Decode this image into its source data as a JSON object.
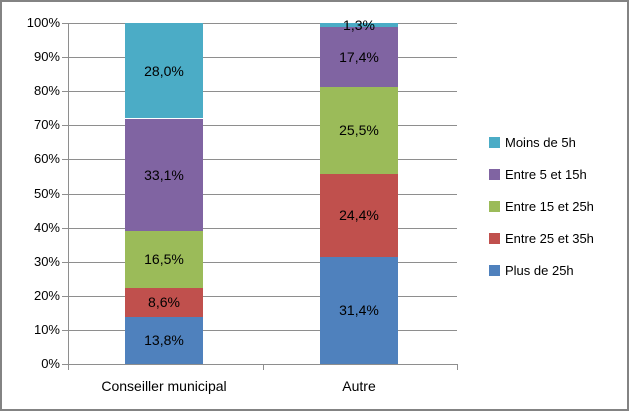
{
  "chart_data": {
    "type": "bar",
    "subtype": "stacked-100-percent-column",
    "title": "",
    "xlabel": "",
    "ylabel": "",
    "ylim": [
      0,
      100
    ],
    "grid": true,
    "legend_position": "right",
    "categories": [
      "Conseiller municipal",
      "Autre"
    ],
    "y_ticks": [
      "0%",
      "10%",
      "20%",
      "30%",
      "40%",
      "50%",
      "60%",
      "70%",
      "80%",
      "90%",
      "100%"
    ],
    "y_tick_values": [
      0,
      10,
      20,
      30,
      40,
      50,
      60,
      70,
      80,
      90,
      100
    ],
    "series": [
      {
        "name": "Plus de 25h",
        "color": "#4f81bd",
        "values": [
          13.8,
          31.4
        ],
        "labels": [
          "13,8%",
          "31,4%"
        ]
      },
      {
        "name": "Entre 25 et 35h",
        "color": "#c0504d",
        "values": [
          8.6,
          24.4
        ],
        "labels": [
          "8,6%",
          "24,4%"
        ]
      },
      {
        "name": "Entre 15 et 25h",
        "color": "#9bbb59",
        "values": [
          16.5,
          25.5
        ],
        "labels": [
          "16,5%",
          "25,5%"
        ]
      },
      {
        "name": "Entre 5 et 15h",
        "color": "#8064a2",
        "values": [
          33.1,
          17.4
        ],
        "labels": [
          "33,1%",
          "17,4%"
        ]
      },
      {
        "name": "Moins de 5h",
        "color": "#4bacc6",
        "values": [
          28.0,
          1.3
        ],
        "labels": [
          "28,0%",
          "1,3%"
        ]
      }
    ],
    "legend_entries": [
      "Moins de 5h",
      "Entre 5 et 15h",
      "Entre 15 et 25h",
      "Entre 25 et 35h",
      "Plus de 25h"
    ]
  },
  "style_colors": {
    "gridline": "#8e8e8e",
    "axis": "#8e8e8e",
    "frame_border": "#838383",
    "text": "#000000",
    "background": "#ffffff"
  }
}
